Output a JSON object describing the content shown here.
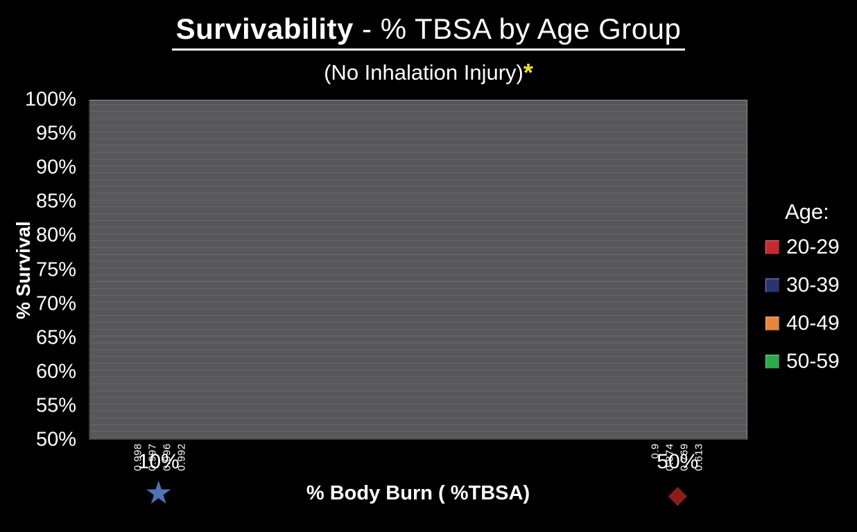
{
  "title_bold": "Survivability",
  "title_rest": " - % TBSA by Age Group",
  "subtitle": "(No Inhalation Injury)",
  "subtitle_asterisk": "*",
  "chart_data": {
    "type": "bar",
    "title": "Survivability - % TBSA by Age Group",
    "subtitle": "(No Inhalation Injury)",
    "xlabel": "% Body Burn ( %TBSA)",
    "ylabel": "% Survival",
    "categories": [
      "10%",
      "50%"
    ],
    "category_markers": [
      "star",
      "diamond"
    ],
    "series": [
      {
        "name": "20-29",
        "color": "#c9282d",
        "values": [
          0.998,
          0.9
        ]
      },
      {
        "name": "30-39",
        "color": "#28356f",
        "values": [
          0.997,
          0.874
        ]
      },
      {
        "name": "40-49",
        "color": "#e8863c",
        "values": [
          0.996,
          0.769
        ]
      },
      {
        "name": "50-59",
        "color": "#2ca94c",
        "values": [
          0.992,
          0.613
        ]
      }
    ],
    "ylim": [
      0.5,
      1.0
    ],
    "yticks": [
      "100%",
      "95%",
      "90%",
      "85%",
      "80%",
      "75%",
      "70%",
      "65%",
      "60%",
      "55%",
      "50%"
    ],
    "legend_title": "Age:",
    "legend_position": "right",
    "grid": true,
    "plot_background": "#58585b"
  },
  "markers": {
    "star_glyph": "★",
    "star_color": "#4f74b3",
    "diamond_glyph": "◆",
    "diamond_color": "#8b1d1d",
    "asterisk_color": "#e8e337"
  }
}
